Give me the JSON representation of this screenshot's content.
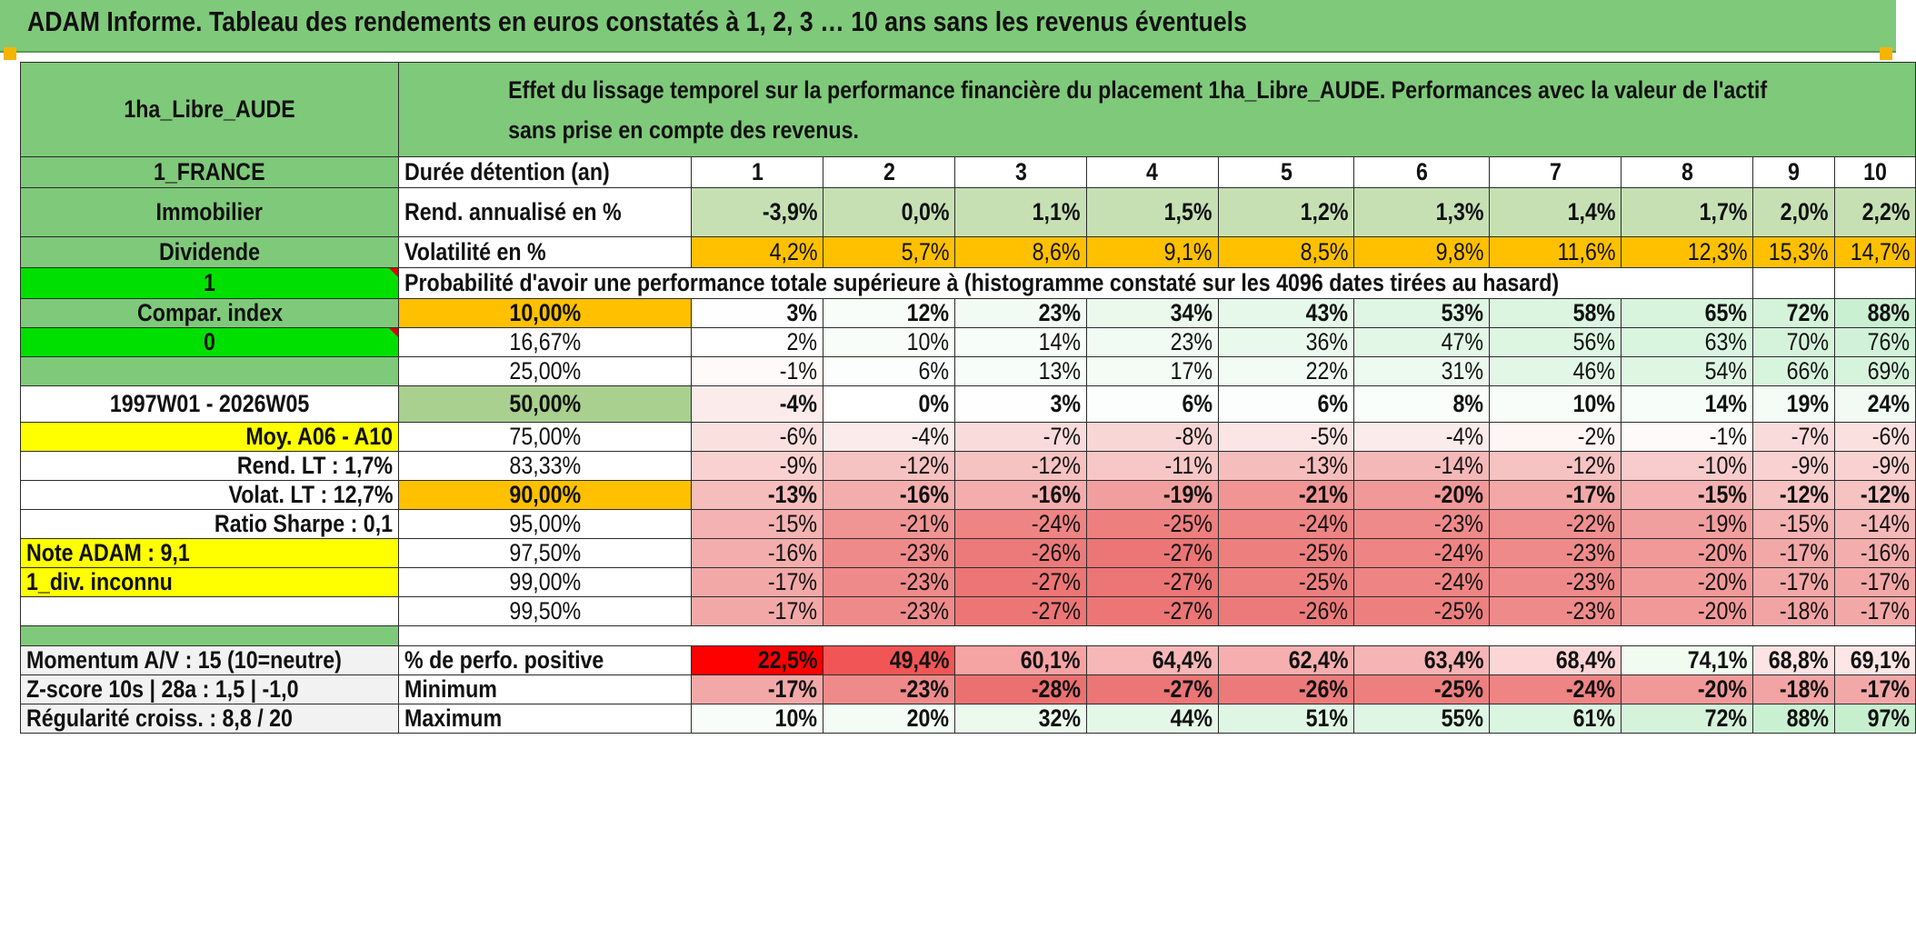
{
  "title": "ADAM Informe. Tableau des rendements en euros constatés à 1, 2, 3 … 10 ans sans les revenus éventuels",
  "left": {
    "asset": "1ha_Libre_AUDE",
    "country": "1_FRANCE",
    "category": "Immobilier",
    "sub": "Dividende",
    "flag1": "1",
    "compar": "Compar. index",
    "flag0": "0",
    "period": "1997W01 - 2026W05",
    "moy": "Moy. A06 - A10",
    "rend_lt": "Rend. LT :   1,7%",
    "volat_lt": "Volat. LT :   12,7%",
    "sharpe": "Ratio Sharpe :    0,1",
    "note": "Note ADAM : 9,1",
    "div": "1_div. inconnu",
    "momentum": "Momentum A/V : 15 (10=neutre)",
    "zscore": "Z-score 10s | 28a : 1,5 | -1,0",
    "regularite": "Régularité croiss. : 8,8 / 20"
  },
  "header_text": "Effet du lissage temporel sur la performance financière du placement 1ha_Libre_AUDE. Performances avec la valeur de l'actif sans prise en compte des revenus.",
  "row_labels": {
    "duree": "Durée détention (an)",
    "rend": "Rend. annualisé en %",
    "volat": "Volatilité en %",
    "proba": "Probabilité d'avoir une performance totale supérieure à (histogramme constaté sur les 4096 dates tirées au hasard)",
    "positive": "% de perfo. positive",
    "minimum": "Minimum",
    "maximum": "Maximum"
  },
  "years": [
    "1",
    "2",
    "3",
    "4",
    "5",
    "6",
    "7",
    "8",
    "9",
    "10"
  ],
  "rend": [
    "-3,9%",
    "0,0%",
    "1,1%",
    "1,5%",
    "1,2%",
    "1,3%",
    "1,4%",
    "1,7%",
    "2,0%",
    "2,2%"
  ],
  "volat": [
    "4,2%",
    "5,7%",
    "8,6%",
    "9,1%",
    "8,5%",
    "9,8%",
    "11,6%",
    "12,3%",
    "15,3%",
    "14,7%"
  ],
  "quantiles": [
    {
      "level": "10,00%",
      "values": [
        "3%",
        "12%",
        "23%",
        "34%",
        "43%",
        "53%",
        "58%",
        "65%",
        "72%",
        "88%"
      ]
    },
    {
      "level": "16,67%",
      "values": [
        "2%",
        "10%",
        "14%",
        "23%",
        "36%",
        "47%",
        "56%",
        "63%",
        "70%",
        "76%"
      ]
    },
    {
      "level": "25,00%",
      "values": [
        "-1%",
        "6%",
        "13%",
        "17%",
        "22%",
        "31%",
        "46%",
        "54%",
        "66%",
        "69%"
      ]
    },
    {
      "level": "50,00%",
      "values": [
        "-4%",
        "0%",
        "3%",
        "6%",
        "6%",
        "8%",
        "10%",
        "14%",
        "19%",
        "24%"
      ]
    },
    {
      "level": "75,00%",
      "values": [
        "-6%",
        "-4%",
        "-7%",
        "-8%",
        "-5%",
        "-4%",
        "-2%",
        "-1%",
        "-7%",
        "-6%"
      ]
    },
    {
      "level": "83,33%",
      "values": [
        "-9%",
        "-12%",
        "-12%",
        "-11%",
        "-13%",
        "-14%",
        "-12%",
        "-10%",
        "-9%",
        "-9%"
      ]
    },
    {
      "level": "90,00%",
      "values": [
        "-13%",
        "-16%",
        "-16%",
        "-19%",
        "-21%",
        "-20%",
        "-17%",
        "-15%",
        "-12%",
        "-12%"
      ]
    },
    {
      "level": "95,00%",
      "values": [
        "-15%",
        "-21%",
        "-24%",
        "-25%",
        "-24%",
        "-23%",
        "-22%",
        "-19%",
        "-15%",
        "-14%"
      ]
    },
    {
      "level": "97,50%",
      "values": [
        "-16%",
        "-23%",
        "-26%",
        "-27%",
        "-25%",
        "-24%",
        "-23%",
        "-20%",
        "-17%",
        "-16%"
      ]
    },
    {
      "level": "99,00%",
      "values": [
        "-17%",
        "-23%",
        "-27%",
        "-27%",
        "-25%",
        "-24%",
        "-23%",
        "-20%",
        "-17%",
        "-17%"
      ]
    },
    {
      "level": "99,50%",
      "values": [
        "-17%",
        "-23%",
        "-27%",
        "-27%",
        "-26%",
        "-25%",
        "-23%",
        "-20%",
        "-18%",
        "-17%"
      ]
    }
  ],
  "positive": [
    "22,5%",
    "49,4%",
    "60,1%",
    "64,4%",
    "62,4%",
    "63,4%",
    "68,4%",
    "74,1%",
    "68,8%",
    "69,1%"
  ],
  "minimum": [
    "-17%",
    "-23%",
    "-28%",
    "-27%",
    "-26%",
    "-25%",
    "-24%",
    "-20%",
    "-18%",
    "-17%"
  ],
  "maximum": [
    "10%",
    "20%",
    "32%",
    "44%",
    "51%",
    "55%",
    "61%",
    "72%",
    "88%",
    "97%"
  ],
  "colors": {
    "header_green": "#7fc97a",
    "lime": "#00e000",
    "yellow": "#ffff00",
    "orange": "#ffc000",
    "red_text": "#e00000"
  }
}
